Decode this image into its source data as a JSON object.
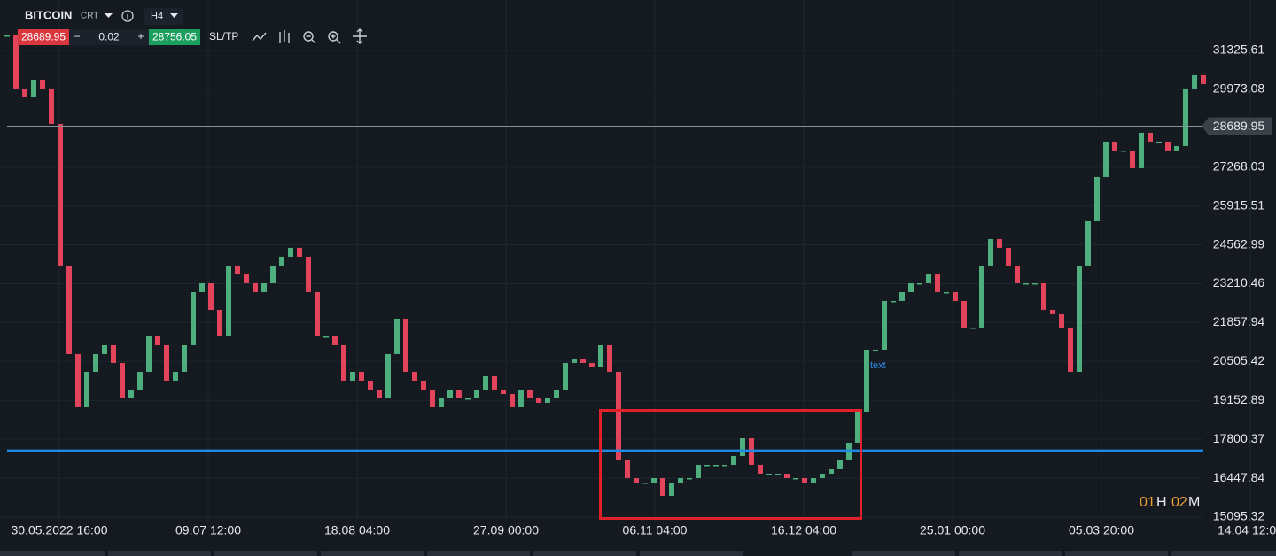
{
  "toolbar": {
    "symbol": "BITCOIN",
    "chart_type": "CRT",
    "timeframe": "H4",
    "bid": "28689.95",
    "minus": "−",
    "volume": "0.02",
    "plus": "+",
    "ask": "28756.05",
    "sltp": "SL/TP"
  },
  "chart_data": {
    "type": "candlestick",
    "series": [
      {
        "name": "BITCOIN",
        "up_color": "#4caf7d",
        "down_color": "#e2445c",
        "values": [
          31850,
          30002,
          29694,
          30310,
          30002,
          28770,
          23842,
          20762,
          18914,
          20146,
          20762,
          21070,
          20454,
          19222,
          19530,
          20146,
          21378,
          21070,
          19838,
          20146,
          21070,
          22918,
          23226,
          22302,
          21378,
          23842,
          23534,
          23226,
          22918,
          23226,
          23842,
          24150,
          24458,
          24150,
          22918,
          21378,
          21378,
          21070,
          19838,
          20146,
          19838,
          19530,
          19222,
          20762,
          21994,
          20146,
          19838,
          19530,
          18914,
          19222,
          19530,
          19222,
          19222,
          19530,
          19992,
          19530,
          19376,
          18914,
          19530,
          19222,
          19068,
          19222,
          19530,
          20454,
          20608,
          20454,
          20300,
          21070,
          20146,
          17066,
          16450,
          16296,
          16296,
          16450,
          15834,
          16296,
          16450,
          16450,
          16912,
          16912,
          16912,
          16912,
          17220,
          17836,
          16912,
          16604,
          16604,
          16604,
          16450,
          16450,
          16296,
          16450,
          16604,
          16758,
          17066,
          17682,
          18760,
          20916,
          20916,
          22610,
          22610,
          22918,
          23226,
          23226,
          23534,
          22918,
          22918,
          22610,
          21686,
          21686,
          23842,
          24766,
          24458,
          23842,
          23226,
          23226,
          23226,
          22302,
          22148,
          21686,
          20146,
          23842,
          25382,
          26922,
          28154,
          27846,
          27846,
          27230,
          28462,
          28154,
          28154,
          27846,
          28000,
          30002,
          30464,
          30156
        ]
      }
    ],
    "ylim": [
      14910,
      33080
    ],
    "yticks": [
      31325.61,
      29973.08,
      27268.03,
      25915.51,
      24562.99,
      23210.46,
      21857.94,
      20505.42,
      19152.89,
      17800.37,
      16447.84,
      15095.32
    ],
    "xticks": [
      "30.05.2022 16:00",
      "09.07 12:00",
      "18.08 04:00",
      "27.09 00:00",
      "06.11 04:00",
      "16.12 04:00",
      "25.01 00:00",
      "05.03 20:00",
      "14.04 12:00"
    ],
    "grid": true,
    "current_price": {
      "value": 28689.95,
      "label": "28689.95"
    },
    "hline": {
      "value": 17400,
      "color": "#1e88e5"
    },
    "annotation": "text",
    "countdown": {
      "hours": "01",
      "hours_unit": "H",
      "minutes": "02",
      "minutes_unit": "M"
    }
  }
}
